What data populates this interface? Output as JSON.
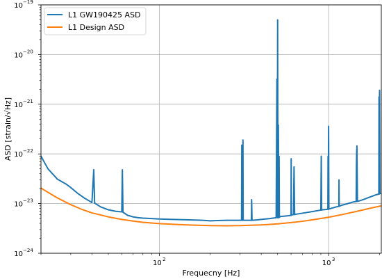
{
  "chart_data": {
    "type": "line",
    "title": "",
    "xlabel": "Frequecny [Hz]",
    "ylabel": "ASD [strain/√Hz]",
    "xscale": "log",
    "yscale": "log",
    "xlim": [
      20,
      2048
    ],
    "ylim": [
      1e-24,
      1e-19
    ],
    "grid": true,
    "legend": {
      "placement": "top-left"
    },
    "x_ticks": [
      {
        "value": 100,
        "base": "10",
        "exp": "2"
      },
      {
        "value": 1000,
        "base": "10",
        "exp": "3"
      }
    ],
    "y_ticks": [
      {
        "value": 1e-24,
        "base": "10",
        "exp": "−24"
      },
      {
        "value": 1e-23,
        "base": "10",
        "exp": "−23"
      },
      {
        "value": 1e-22,
        "base": "10",
        "exp": "−22"
      },
      {
        "value": 1e-21,
        "base": "10",
        "exp": "−21"
      },
      {
        "value": 1e-20,
        "base": "10",
        "exp": "−20"
      },
      {
        "value": 1e-19,
        "base": "10",
        "exp": "−19"
      }
    ],
    "series": [
      {
        "name": "L1 GW190425 ASD",
        "color": "#1f77b4",
        "x": [
          20,
          22,
          25,
          28,
          30,
          33,
          36,
          40,
          41,
          41.5,
          42,
          45,
          50,
          55,
          60,
          60.5,
          61,
          65,
          70,
          75,
          80,
          90,
          100,
          120,
          150,
          180,
          200,
          220,
          250,
          280,
          300,
          306,
          307,
          309,
          310,
          312,
          313,
          315,
          320,
          330,
          350,
          351,
          353,
          355,
          380,
          400,
          450,
          490,
          495,
          498,
          500,
          502,
          505,
          508,
          510,
          512,
          520,
          550,
          580,
          600,
          601,
          603,
          605,
          620,
          625,
          630,
          640,
          700,
          800,
          900,
          905,
          910,
          920,
          990,
          993,
          996,
          1000,
          1004,
          1008,
          1020,
          1100,
          1150,
          1152,
          1155,
          1160,
          1200,
          1300,
          1400,
          1455,
          1460,
          1465,
          1470,
          1480,
          1490,
          1500,
          1600,
          1700,
          1800,
          1900,
          1980,
          1985,
          1990,
          2000,
          2010,
          2040,
          2048
        ],
        "y": [
          9e-23,
          5e-23,
          3.1e-23,
          2.5e-23,
          2.1e-23,
          1.6e-23,
          1.3e-23,
          1.05e-23,
          4.8e-23,
          1.02e-23,
          1e-23,
          8.6e-24,
          7.5e-24,
          7e-24,
          6.8e-24,
          4.8e-23,
          6.7e-24,
          5.8e-24,
          5.4e-24,
          5.2e-24,
          5.1e-24,
          5e-24,
          4.9e-24,
          4.8e-24,
          4.7e-24,
          4.6e-24,
          4.5e-24,
          4.55e-24,
          4.6e-24,
          4.6e-24,
          4.6e-24,
          4.6e-24,
          1.5e-22,
          4.6e-24,
          4.6e-24,
          1.9e-22,
          4.6e-24,
          4.6e-24,
          4.6e-24,
          4.6e-24,
          4.6e-24,
          1.2e-23,
          4.6e-24,
          4.6e-24,
          4.7e-24,
          4.8e-24,
          5e-24,
          5.2e-24,
          3.2e-21,
          5.2e-24,
          5e-20,
          5.2e-24,
          3.8e-22,
          5.2e-24,
          9e-23,
          5.3e-24,
          5.5e-24,
          5.6e-24,
          5.7e-24,
          5.8e-24,
          8e-23,
          5.8e-24,
          5.9e-24,
          6e-24,
          5.5e-23,
          6e-24,
          6.1e-24,
          6.4e-24,
          6.9e-24,
          7.4e-24,
          9e-23,
          7.4e-24,
          7.5e-24,
          7.7e-24,
          9e-23,
          7.7e-24,
          3.6e-22,
          7.7e-24,
          7.8e-24,
          7.9e-24,
          8.5e-24,
          8.8e-24,
          3e-23,
          8.8e-24,
          8.9e-24,
          9.3e-24,
          1e-23,
          1.08e-23,
          1.1e-23,
          6e-23,
          1.1e-22,
          1.45e-22,
          1.1e-23,
          1.12e-23,
          1.12e-23,
          1.2e-23,
          1.3e-23,
          1.4e-23,
          1.5e-23,
          1.55e-23,
          1.4e-21,
          1.55e-23,
          1.9e-21,
          1.6e-23,
          1.6e-23,
          1.6e-23
        ]
      },
      {
        "name": "L1 Design ASD",
        "color": "#ff7f0e",
        "x": [
          20,
          25,
          30,
          35,
          40,
          50,
          60,
          70,
          80,
          100,
          150,
          200,
          250,
          300,
          400,
          500,
          600,
          700,
          800,
          1000,
          1200,
          1500,
          1800,
          2048
        ],
        "y": [
          2.05e-23,
          1.3e-23,
          9.5e-24,
          7.6e-24,
          6.5e-24,
          5.4e-24,
          4.8e-24,
          4.45e-24,
          4.2e-24,
          3.95e-24,
          3.7e-24,
          3.6e-24,
          3.58e-24,
          3.6e-24,
          3.72e-24,
          3.9e-24,
          4.15e-24,
          4.4e-24,
          4.7e-24,
          5.3e-24,
          6e-24,
          7.1e-24,
          8.2e-24,
          9e-24
        ]
      }
    ]
  }
}
